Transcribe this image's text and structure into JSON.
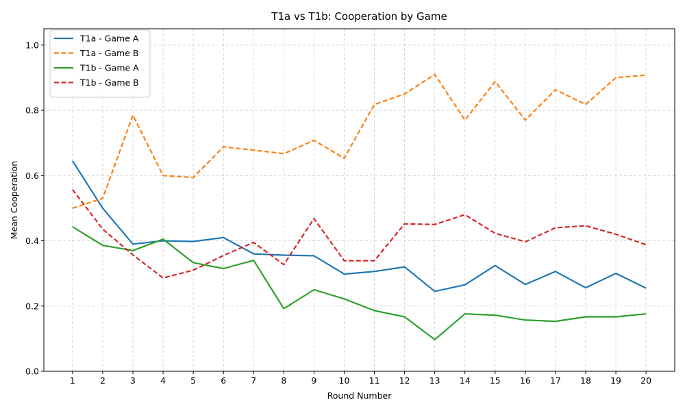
{
  "chart_data": {
    "type": "line",
    "title": "T1a vs T1b: Cooperation by Game",
    "xlabel": "Round Number",
    "ylabel": "Mean Cooperation",
    "x": [
      1,
      2,
      3,
      4,
      5,
      6,
      7,
      8,
      9,
      10,
      11,
      12,
      13,
      14,
      15,
      16,
      17,
      18,
      19,
      20
    ],
    "ylim": [
      0,
      1.05
    ],
    "yticks": [
      "0.0",
      "0.2",
      "0.4",
      "0.6",
      "0.8",
      "1.0"
    ],
    "grid": true,
    "legend_position": "top-left",
    "series": [
      {
        "name": "T1a - Game A",
        "color": "#1f77b4",
        "dash": "solid",
        "values": [
          0.645,
          0.5,
          0.39,
          0.4,
          0.398,
          0.41,
          0.36,
          0.356,
          0.354,
          0.298,
          0.306,
          0.32,
          0.245,
          0.265,
          0.324,
          0.266,
          0.306,
          0.256,
          0.3,
          0.255
        ]
      },
      {
        "name": "T1a - Game B",
        "color": "#ff7f0e",
        "dash": "dashed",
        "values": [
          0.5,
          0.53,
          0.785,
          0.6,
          0.594,
          0.688,
          0.678,
          0.667,
          0.708,
          0.653,
          0.818,
          0.85,
          0.91,
          0.77,
          0.888,
          0.77,
          0.863,
          0.818,
          0.9,
          0.908
        ]
      },
      {
        "name": "T1b - Game A",
        "color": "#2ca02c",
        "dash": "solid",
        "values": [
          0.443,
          0.386,
          0.37,
          0.405,
          0.333,
          0.315,
          0.34,
          0.192,
          0.25,
          0.222,
          0.186,
          0.167,
          0.097,
          0.176,
          0.172,
          0.157,
          0.153,
          0.167,
          0.167,
          0.176
        ]
      },
      {
        "name": "T1b - Game B",
        "color": "#d62728",
        "dash": "dashed",
        "values": [
          0.557,
          0.436,
          0.357,
          0.286,
          0.31,
          0.355,
          0.395,
          0.327,
          0.468,
          0.339,
          0.339,
          0.452,
          0.45,
          0.48,
          0.423,
          0.397,
          0.44,
          0.446,
          0.42,
          0.388
        ]
      }
    ]
  }
}
